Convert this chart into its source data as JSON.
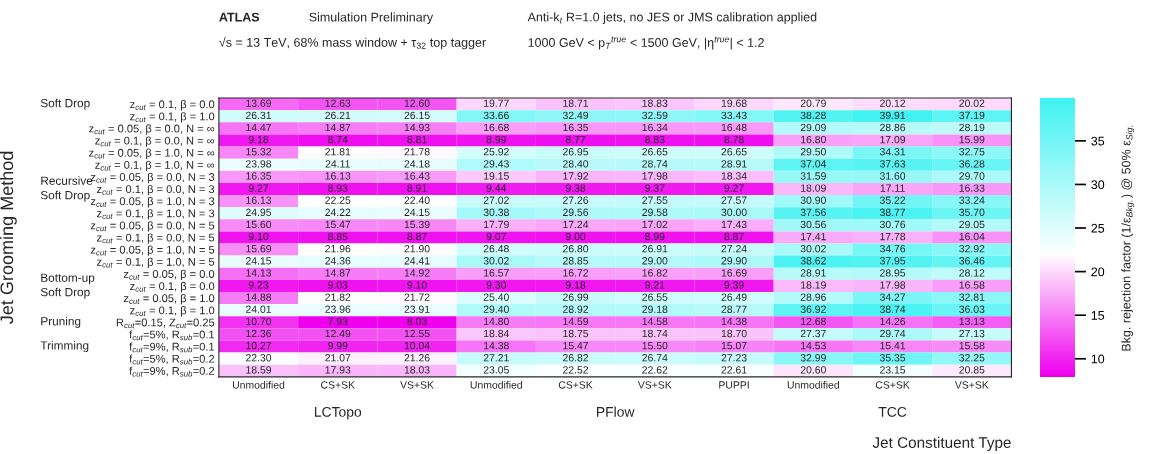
{
  "chart_data": {
    "type": "heatmap",
    "title": "ATLAS",
    "subtitle": "Simulation Preliminary",
    "annotations": [
      "√s = 13 TeV, 68% mass window + τ$_{32}$ top tagger",
      "Anti-k$_{t}$ R=1.0 jets, no JES or JMS calibration applied",
      "1000 GeV < p$_{T}$$^{true}$ < 1500 GeV, |η$^{true}$| < 1.2",
      "LCTopo",
      "PFlow",
      "TCC"
    ],
    "xlabel": "Jet Constituent Type",
    "ylabel": "Jet Grooming Method",
    "clabel": "Bkg. rejection factor (1/ε$_{Bkg.}$) @ 50% ε$_{Sig.}$",
    "categories": [
      "Unmodified",
      "CS+SK",
      "VS+SK",
      "Unmodified",
      "CS+SK",
      "VS+SK",
      "PUPPI",
      "Unmodified",
      "CS+SK",
      "VS+SK"
    ],
    "y_categories": [
      "z$_{cut}$ = 0.1, β = 0.0",
      "z$_{cut}$ = 0.1, β = 1.0",
      "z$_{cut}$ = 0.05, β = 0.0, N = ∞",
      "z$_{cut}$ = 0.1, β = 0.0, N = ∞",
      "z$_{cut}$ = 0.05, β = 1.0, N = ∞",
      "z$_{cut}$ = 0.1, β = 1.0, N = ∞",
      "z$_{cut}$ = 0.05, β = 0.0, N = 3",
      "z$_{cut}$ = 0.1, β = 0.0, N = 3",
      "z$_{cut}$ = 0.05, β = 1.0, N = 3",
      "z$_{cut}$ = 0.1, β = 1.0, N = 3",
      "z$_{cut}$ = 0.05, β = 0.0, N = 5",
      "z$_{cut}$ = 0.1, β = 0.0, N = 5",
      "z$_{cut}$ = 0.05, β = 1.0, N = 5",
      "z$_{cut}$ = 0.1, β = 1.0, N = 5",
      "z$_{cut}$ = 0.05, β = 0.0",
      "z$_{cut}$ = 0.1, β = 0.0",
      "z$_{cut}$ = 0.05, β = 1.0",
      "z$_{cut}$ = 0.1, β = 1.0",
      "R$_{cut}$=0.15, Z$_{cut}$=0.25",
      "f$_{cut}$=5%, R$_{sub}$=0.1",
      "f$_{cut}$=9%, R$_{sub}$=0.1",
      "f$_{cut}$=5%, R$_{sub}$=0.2",
      "f$_{cut}$=9%, R$_{sub}$=0.2"
    ],
    "y2_categories": [
      "Soft Drop",
      null,
      null,
      null,
      null,
      null,
      null,
      "Recursive\nSoft Drop",
      null,
      null,
      null,
      null,
      null,
      null,
      null,
      "Bottom-up\nSoft Drop",
      null,
      null,
      "Pruning",
      null,
      "Trimming",
      null,
      null
    ],
    "cells": [
      [
        13.69,
        12.63,
        12.6,
        19.77,
        18.71,
        18.83,
        19.68,
        20.79,
        20.12,
        20.02
      ],
      [
        26.31,
        26.21,
        26.15,
        33.66,
        32.49,
        32.59,
        33.43,
        38.28,
        39.91,
        37.19
      ],
      [
        14.47,
        14.87,
        14.93,
        16.68,
        16.35,
        16.34,
        16.48,
        29.09,
        28.86,
        28.19
      ],
      [
        9.18,
        8.74,
        8.81,
        8.99,
        8.77,
        8.83,
        8.78,
        16.8,
        17.09,
        15.99
      ],
      [
        15.32,
        21.81,
        21.78,
        25.92,
        26.95,
        26.65,
        26.65,
        29.5,
        34.31,
        32.75
      ],
      [
        23.98,
        24.11,
        24.18,
        29.43,
        28.4,
        28.74,
        28.91,
        37.04,
        37.63,
        36.28
      ],
      [
        16.35,
        16.13,
        16.43,
        19.15,
        17.92,
        17.98,
        18.34,
        31.59,
        31.6,
        29.7
      ],
      [
        9.27,
        8.93,
        8.91,
        9.44,
        9.38,
        9.37,
        9.27,
        18.09,
        17.11,
        16.33
      ],
      [
        16.13,
        22.25,
        22.4,
        27.02,
        27.26,
        27.55,
        27.57,
        30.9,
        35.22,
        33.24
      ],
      [
        24.95,
        24.22,
        24.15,
        30.38,
        29.56,
        29.58,
        30.0,
        37.56,
        38.77,
        35.7
      ],
      [
        15.6,
        15.47,
        15.39,
        17.79,
        17.24,
        17.02,
        17.43,
        30.56,
        30.76,
        29.05
      ],
      [
        9.1,
        8.85,
        8.87,
        9.07,
        9.0,
        8.99,
        8.87,
        17.41,
        17.78,
        16.04
      ],
      [
        15.69,
        21.96,
        21.9,
        26.48,
        26.8,
        26.91,
        27.24,
        30.02,
        34.76,
        32.92
      ],
      [
        24.15,
        24.36,
        24.41,
        30.02,
        28.85,
        29.0,
        29.9,
        38.62,
        37.95,
        36.46
      ],
      [
        14.13,
        14.87,
        14.92,
        16.57,
        16.72,
        16.82,
        16.69,
        28.91,
        28.95,
        28.12
      ],
      [
        9.23,
        9.03,
        9.1,
        9.3,
        9.18,
        9.21,
        9.39,
        18.19,
        17.98,
        16.58
      ],
      [
        14.88,
        21.82,
        21.72,
        25.4,
        26.99,
        26.55,
        26.49,
        28.96,
        34.27,
        32.81
      ],
      [
        24.01,
        23.96,
        23.91,
        29.4,
        28.92,
        29.18,
        28.77,
        36.92,
        38.74,
        36.03
      ],
      [
        10.7,
        7.93,
        8.03,
        14.8,
        14.59,
        14.58,
        14.38,
        12.68,
        14.26,
        13.13
      ],
      [
        12.36,
        12.49,
        12.55,
        18.84,
        18.75,
        18.74,
        18.7,
        27.37,
        29.74,
        27.13
      ],
      [
        10.27,
        9.99,
        10.04,
        14.38,
        15.47,
        15.5,
        15.07,
        14.53,
        15.41,
        15.58
      ],
      [
        22.3,
        21.07,
        21.26,
        27.21,
        26.82,
        26.74,
        27.23,
        32.99,
        35.35,
        32.25
      ],
      [
        18.59,
        17.93,
        18.03,
        23.05,
        22.52,
        22.62,
        22.61,
        20.6,
        23.15,
        20.85
      ]
    ],
    "cell_labels": [
      [
        "13.69",
        "12.63",
        "12.60",
        "19.77",
        "18.71",
        "18.83",
        "19.68",
        "20.79",
        "20.12",
        "20.02"
      ],
      [
        "26.31",
        "26.21",
        "26.15",
        "33.66",
        "32.49",
        "32.59",
        "33.43",
        "38.28",
        "39.91",
        "37.19"
      ],
      [
        "14.47",
        "14.87",
        "14.93",
        "16.68",
        "16.35",
        "16.34",
        "16.48",
        "29.09",
        "28.86",
        "28.19"
      ],
      [
        "9.18",
        "8.74",
        "8.81",
        "8.99",
        "8.77",
        "8.83",
        "8.78",
        "16.80",
        "17.09",
        "15.99"
      ],
      [
        "15.32",
        "21.81",
        "21.78",
        "25.92",
        "26.95",
        "26.65",
        "26.65",
        "29.50",
        "34.31",
        "32.75"
      ],
      [
        "23.98",
        "24.11",
        "24.18",
        "29.43",
        "28.40",
        "28.74",
        "28.91",
        "37.04",
        "37.63",
        "36.28"
      ],
      [
        "16.35",
        "16.13",
        "16.43",
        "19.15",
        "17.92",
        "17.98",
        "18.34",
        "31.59",
        "31.60",
        "29.70"
      ],
      [
        "9.27",
        "8.93",
        "8.91",
        "9.44",
        "9.38",
        "9.37",
        "9.27",
        "18.09",
        "17.11",
        "16.33"
      ],
      [
        "16.13",
        "22.25",
        "22.40",
        "27.02",
        "27.26",
        "27.55",
        "27.57",
        "30.90",
        "35.22",
        "33.24"
      ],
      [
        "24.95",
        "24.22",
        "24.15",
        "30.38",
        "29.56",
        "29.58",
        "30.00",
        "37.56",
        "38.77",
        "35.70"
      ],
      [
        "15.60",
        "15.47",
        "15.39",
        "17.79",
        "17.24",
        "17.02",
        "17.43",
        "30.56",
        "30.76",
        "29.05"
      ],
      [
        "9.10",
        "8.85",
        "8.87",
        "9.07",
        "9.00",
        "8.99",
        "8.87",
        "17.41",
        "17.78",
        "16.04"
      ],
      [
        "15.69",
        "21.96",
        "21.90",
        "26.48",
        "26.80",
        "26.91",
        "27.24",
        "30.02",
        "34.76",
        "32.92"
      ],
      [
        "24.15",
        "24.36",
        "24.41",
        "30.02",
        "28.85",
        "29.00",
        "29.90",
        "38.62",
        "37.95",
        "36.46"
      ],
      [
        "14.13",
        "14.87",
        "14.92",
        "16.57",
        "16.72",
        "16.82",
        "16.69",
        "28.91",
        "28.95",
        "28.12"
      ],
      [
        "9.23",
        "9.03",
        "9.10",
        "9.30",
        "9.18",
        "9.21",
        "9.39",
        "18.19",
        "17.98",
        "16.58"
      ],
      [
        "14.88",
        "21.82",
        "21.72",
        "25.40",
        "26.99",
        "26.55",
        "26.49",
        "28.96",
        "34.27",
        "32.81"
      ],
      [
        "24.01",
        "23.96",
        "23.91",
        "29.40",
        "28.92",
        "29.18",
        "28.77",
        "36.92",
        "38.74",
        "36.03"
      ],
      [
        "10.70",
        "7.93",
        "8.03",
        "14.80",
        "14.59",
        "14.58",
        "14.38",
        "12.68",
        "14.26",
        "13.13"
      ],
      [
        "12.36",
        "12.49",
        "12.55",
        "18.84",
        "18.75",
        "18.74",
        "18.70",
        "27.37",
        "29.74",
        "27.13"
      ],
      [
        "10.27",
        "9.99",
        "10.04",
        "14.38",
        "15.47",
        "15.50",
        "15.07",
        "14.53",
        "15.41",
        "15.58"
      ],
      [
        "22.30",
        "21.07",
        "21.26",
        "27.21",
        "26.82",
        "26.74",
        "27.23",
        "32.99",
        "35.35",
        "32.25"
      ],
      [
        "18.59",
        "17.93",
        "18.03",
        "23.05",
        "22.52",
        "22.62",
        "22.61",
        "20.60",
        "23.15",
        "20.85"
      ]
    ],
    "clim": [
      7.93,
      39.91
    ],
    "cticks": [
      10,
      15,
      20,
      25,
      30,
      35
    ]
  }
}
